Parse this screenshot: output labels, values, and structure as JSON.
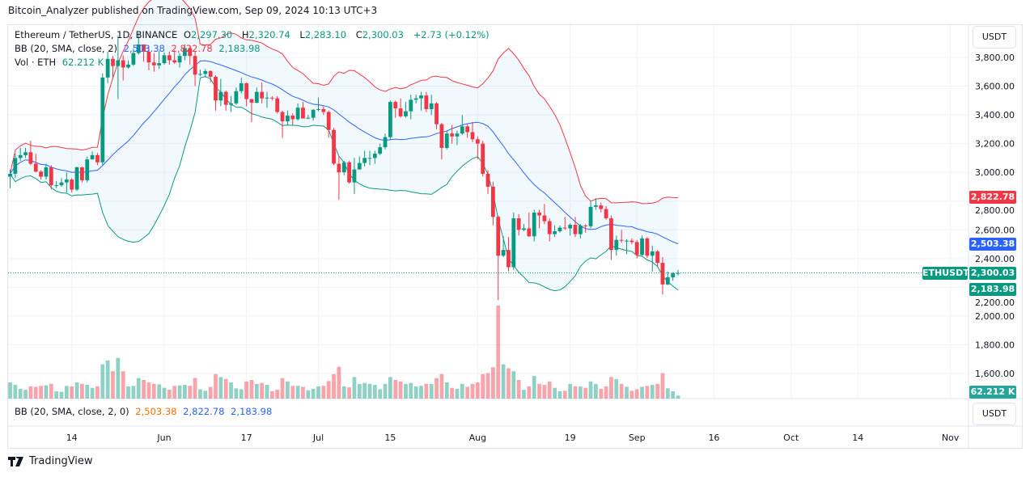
{
  "header": {
    "published": "Bitcoin_Analyzer published on TradingView.com, Sep 09, 2024 10:13 UTC+3"
  },
  "legend": {
    "symbol": "Ethereum / TetherUS, 1D, BINANCE",
    "o_label": "O",
    "o": "2,297.30",
    "h_label": "H",
    "h": "2,320.74",
    "l_label": "L",
    "l": "2,283.10",
    "c_label": "C",
    "c": "2,300.03",
    "change": "+2.73 (+0.12%)",
    "bb_label": "BB (20, SMA, close, 2)",
    "bb_basis": "2,503.38",
    "bb_upper": "2,822.78",
    "bb_lower": "2,183.98",
    "vol_label": "Vol · ETH",
    "vol": "62.212 K"
  },
  "lower_pane": {
    "label": "BB (20, SMA, close, 2, 0)",
    "basis": "2,503.38",
    "upper": "2,822.78",
    "lower": "2,183.98"
  },
  "axis": {
    "currency": "USDT",
    "currency2": "USDT",
    "symbol_tag": "ETHUSDT",
    "labels": {
      "upper": "2,822.78",
      "basis": "2,503.38",
      "last": "2,300.03",
      "lower": "2,183.98",
      "volume": "62.212 K"
    }
  },
  "footer": {
    "brand": "TradingView"
  },
  "colors": {
    "up": "#089981",
    "down": "#f23645",
    "basis": "#2962ff",
    "upper": "#f23645",
    "lower": "#089981",
    "band_fill": "#2196f3"
  },
  "chart_data": {
    "type": "candlestick",
    "interval": "1D",
    "first_date": "2024-05-02",
    "last_date": "2024-09-09",
    "ylim": [
      1500,
      3950
    ],
    "yticks": [
      1600,
      1800,
      2000,
      2200,
      2400,
      2600,
      2800,
      3000,
      3200,
      3400,
      3600,
      3800
    ],
    "ytick_labels": [
      "1,600.00",
      "1,800.00",
      "2,000.00",
      "2,200.00",
      "2,400.00",
      "2,600.00",
      "2,800.00",
      "3,000.00",
      "3,200.00",
      "3,400.00",
      "3,600.00",
      "3,800.00"
    ],
    "xticks": [
      {
        "label": "14",
        "date": "2024-05-14"
      },
      {
        "label": "Jun",
        "date": "2024-06-01"
      },
      {
        "label": "17",
        "date": "2024-06-17"
      },
      {
        "label": "Jul",
        "date": "2024-07-01"
      },
      {
        "label": "15",
        "date": "2024-07-15"
      },
      {
        "label": "Aug",
        "date": "2024-08-01"
      },
      {
        "label": "19",
        "date": "2024-08-19"
      },
      {
        "label": "Sep",
        "date": "2024-09-01"
      },
      {
        "label": "16",
        "date": "2024-09-16"
      },
      {
        "label": "Oct",
        "date": "2024-10-01"
      },
      {
        "label": "14",
        "date": "2024-10-14"
      },
      {
        "label": "Nov",
        "date": "2024-11-01"
      }
    ],
    "xaxis_end": "2024-11-04",
    "grid": true,
    "open": [
      2970,
      2990,
      3100,
      3120,
      3140,
      3060,
      3005,
      2970,
      3035,
      2910,
      2910,
      2930,
      2950,
      2880,
      3035,
      2945,
      3090,
      3120,
      3070,
      3660,
      3790,
      3740,
      3780,
      3730,
      3750,
      3830,
      3890,
      3840,
      3765,
      3745,
      3760,
      3815,
      3780,
      3765,
      3810,
      3865,
      3810,
      3680,
      3685,
      3705,
      3665,
      3500,
      3560,
      3470,
      3480,
      3565,
      3620,
      3510,
      3485,
      3560,
      3515,
      3520,
      3515,
      3420,
      3355,
      3395,
      3370,
      3450,
      3375,
      3380,
      3435,
      3440,
      3420,
      3295,
      3060,
      3000,
      3070,
      2930,
      3020,
      3065,
      3100,
      3100,
      3130,
      3175,
      3245,
      3490,
      3445,
      3390,
      3425,
      3505,
      3515,
      3535,
      3440,
      3480,
      3335,
      3170,
      3270,
      3250,
      3270,
      3320,
      3280,
      3230,
      3200,
      2990,
      2900,
      2690,
      2420,
      2460,
      2340,
      2680,
      2600,
      2610,
      2555,
      2720,
      2700,
      2660,
      2570,
      2590,
      2615,
      2610,
      2635,
      2570,
      2630,
      2625,
      2760,
      2770,
      2745,
      2680,
      2460,
      2530,
      2525,
      2525,
      2515,
      2425,
      2540,
      2420,
      2450,
      2370,
      2220,
      2270,
      2297.3
    ],
    "high": [
      3020,
      3130,
      3170,
      3170,
      3220,
      3130,
      3015,
      3060,
      3050,
      2940,
      2960,
      3000,
      2960,
      3040,
      3040,
      3110,
      3145,
      3135,
      3690,
      3840,
      3810,
      3950,
      3815,
      3780,
      3860,
      3970,
      3890,
      3880,
      3830,
      3845,
      3835,
      3840,
      3850,
      3830,
      3890,
      3880,
      3840,
      3715,
      3720,
      3710,
      3675,
      3650,
      3570,
      3530,
      3590,
      3660,
      3625,
      3510,
      3590,
      3625,
      3560,
      3530,
      3530,
      3430,
      3430,
      3410,
      3480,
      3490,
      3400,
      3440,
      3520,
      3460,
      3430,
      3310,
      3110,
      3080,
      3080,
      3100,
      3110,
      3150,
      3150,
      3150,
      3200,
      3270,
      3500,
      3500,
      3515,
      3490,
      3540,
      3540,
      3560,
      3560,
      3540,
      3490,
      3345,
      3290,
      3330,
      3290,
      3400,
      3340,
      3350,
      3250,
      3220,
      3015,
      2935,
      2700,
      2555,
      2550,
      2720,
      2710,
      2640,
      2720,
      2740,
      2740,
      2780,
      2680,
      2630,
      2630,
      2690,
      2645,
      2690,
      2640,
      2640,
      2800,
      2820,
      2790,
      2765,
      2700,
      2560,
      2600,
      2535,
      2540,
      2530,
      2560,
      2550,
      2490,
      2460,
      2410,
      2310,
      2305,
      2320.74
    ],
    "low": [
      2890,
      2960,
      3080,
      3100,
      3050,
      3000,
      2950,
      2950,
      2880,
      2890,
      2900,
      2860,
      2860,
      2870,
      2930,
      2930,
      3090,
      3050,
      3050,
      3620,
      3650,
      3510,
      3640,
      3720,
      3740,
      3820,
      3770,
      3710,
      3700,
      3720,
      3750,
      3750,
      3755,
      3730,
      3780,
      3750,
      3600,
      3670,
      3660,
      3625,
      3430,
      3460,
      3430,
      3420,
      3470,
      3550,
      3460,
      3350,
      3480,
      3480,
      3450,
      3500,
      3410,
      3240,
      3330,
      3330,
      3360,
      3375,
      3370,
      3360,
      3425,
      3400,
      3240,
      3050,
      2810,
      2980,
      2920,
      2850,
      3030,
      3040,
      3050,
      3060,
      3120,
      3160,
      3230,
      3380,
      3380,
      3380,
      3370,
      3480,
      3430,
      3420,
      3400,
      3300,
      3090,
      3160,
      3200,
      3190,
      3260,
      3240,
      3210,
      3090,
      2970,
      2850,
      2630,
      2110,
      2410,
      2310,
      2320,
      2560,
      2590,
      2550,
      2520,
      2610,
      2640,
      2520,
      2550,
      2580,
      2600,
      2560,
      2550,
      2540,
      2580,
      2610,
      2740,
      2720,
      2670,
      2390,
      2420,
      2510,
      2430,
      2500,
      2400,
      2420,
      2405,
      2310,
      2340,
      2150,
      2215,
      2245,
      2283.1
    ],
    "close": [
      2990,
      3100,
      3120,
      3140,
      3060,
      3005,
      2970,
      3035,
      2910,
      2910,
      2930,
      2950,
      2880,
      3035,
      2945,
      3090,
      3120,
      3070,
      3660,
      3790,
      3740,
      3780,
      3730,
      3750,
      3830,
      3890,
      3840,
      3765,
      3745,
      3760,
      3815,
      3780,
      3765,
      3810,
      3865,
      3810,
      3680,
      3685,
      3705,
      3665,
      3500,
      3560,
      3470,
      3480,
      3565,
      3620,
      3510,
      3485,
      3560,
      3515,
      3520,
      3515,
      3420,
      3355,
      3395,
      3370,
      3450,
      3375,
      3380,
      3435,
      3440,
      3420,
      3295,
      3060,
      3000,
      3070,
      2930,
      3020,
      3065,
      3100,
      3100,
      3130,
      3175,
      3245,
      3490,
      3445,
      3390,
      3425,
      3505,
      3515,
      3535,
      3440,
      3480,
      3335,
      3170,
      3270,
      3250,
      3270,
      3320,
      3280,
      3230,
      3200,
      2990,
      2900,
      2690,
      2420,
      2460,
      2340,
      2680,
      2600,
      2610,
      2555,
      2720,
      2700,
      2660,
      2570,
      2590,
      2615,
      2610,
      2635,
      2570,
      2630,
      2625,
      2760,
      2770,
      2745,
      2680,
      2460,
      2530,
      2525,
      2525,
      2515,
      2425,
      2540,
      2420,
      2450,
      2370,
      2220,
      2270,
      2297,
      2300.03
    ],
    "volume_k": [
      330,
      280,
      200,
      180,
      250,
      240,
      260,
      270,
      300,
      150,
      140,
      260,
      250,
      330,
      300,
      280,
      220,
      250,
      700,
      780,
      560,
      830,
      560,
      250,
      260,
      420,
      380,
      330,
      300,
      290,
      220,
      180,
      260,
      270,
      280,
      260,
      420,
      190,
      160,
      240,
      500,
      440,
      400,
      330,
      210,
      190,
      350,
      380,
      300,
      320,
      280,
      150,
      180,
      420,
      350,
      260,
      260,
      240,
      170,
      200,
      250,
      260,
      360,
      500,
      650,
      250,
      230,
      440,
      300,
      320,
      300,
      280,
      190,
      300,
      440,
      380,
      350,
      300,
      320,
      250,
      260,
      300,
      300,
      420,
      500,
      330,
      220,
      200,
      300,
      240,
      300,
      330,
      500,
      520,
      640,
      1900,
      700,
      620,
      560,
      380,
      180,
      250,
      460,
      300,
      280,
      350,
      220,
      150,
      160,
      300,
      250,
      250,
      220,
      350,
      300,
      200,
      250,
      440,
      400,
      300,
      240,
      160,
      190,
      240,
      260,
      280,
      300,
      520,
      210,
      150,
      62.212
    ],
    "indicators": [
      {
        "name": "BB (20, SMA, close, 2)",
        "basis": 2503.38,
        "upper": 2822.78,
        "lower": 2183.98
      }
    ],
    "last_price": 2300.03
  }
}
